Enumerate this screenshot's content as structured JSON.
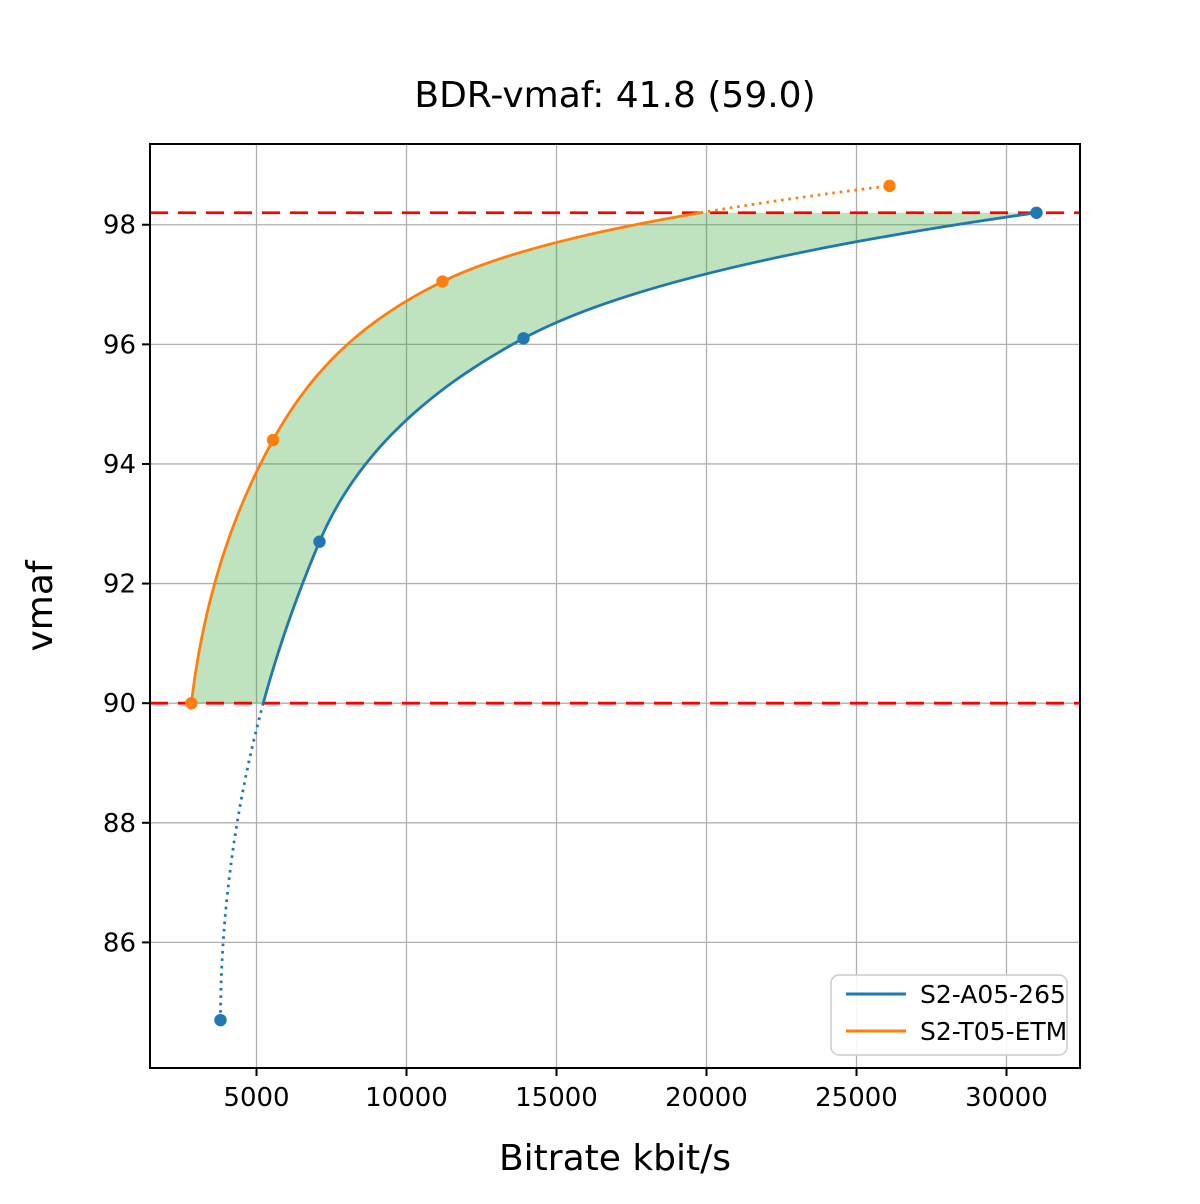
{
  "figure": {
    "background": "#ffffff"
  },
  "chart_data": {
    "type": "line",
    "title": "BDR-vmaf: 41.8 (59.0)",
    "xlabel": "Bitrate kbit/s",
    "ylabel": "vmaf",
    "xlim": [
      1450,
      32450
    ],
    "ylim": [
      83.9,
      99.35
    ],
    "x_ticks": [
      5000,
      10000,
      15000,
      20000,
      25000,
      30000
    ],
    "y_ticks": [
      86,
      88,
      90,
      92,
      94,
      96,
      98
    ],
    "grid": true,
    "grid_color": "#b0b0b0",
    "spine_color": "#000000",
    "series": [
      {
        "name": "S2-A05-265",
        "color": "#1f77b4",
        "points": [
          [
            3800,
            84.7
          ],
          [
            7100,
            92.7
          ],
          [
            13900,
            96.1
          ],
          [
            31000,
            98.2
          ]
        ]
      },
      {
        "name": "S2-T05-ETM",
        "color": "#ff7f0e",
        "points": [
          [
            2830,
            90.0
          ],
          [
            5550,
            94.4
          ],
          [
            11200,
            97.05
          ],
          [
            26100,
            98.65
          ]
        ]
      }
    ],
    "reference_lines": {
      "style": "dashed",
      "color": "#ff0000",
      "y_values": [
        90.0,
        98.2
      ]
    },
    "shaded_region": {
      "color": "#2ca02c",
      "opacity": 0.3,
      "vmaf_range": [
        90.0,
        98.2
      ]
    },
    "legend": {
      "position": "lower right",
      "entries": [
        "S2-A05-265",
        "S2-T05-ETM"
      ]
    }
  }
}
